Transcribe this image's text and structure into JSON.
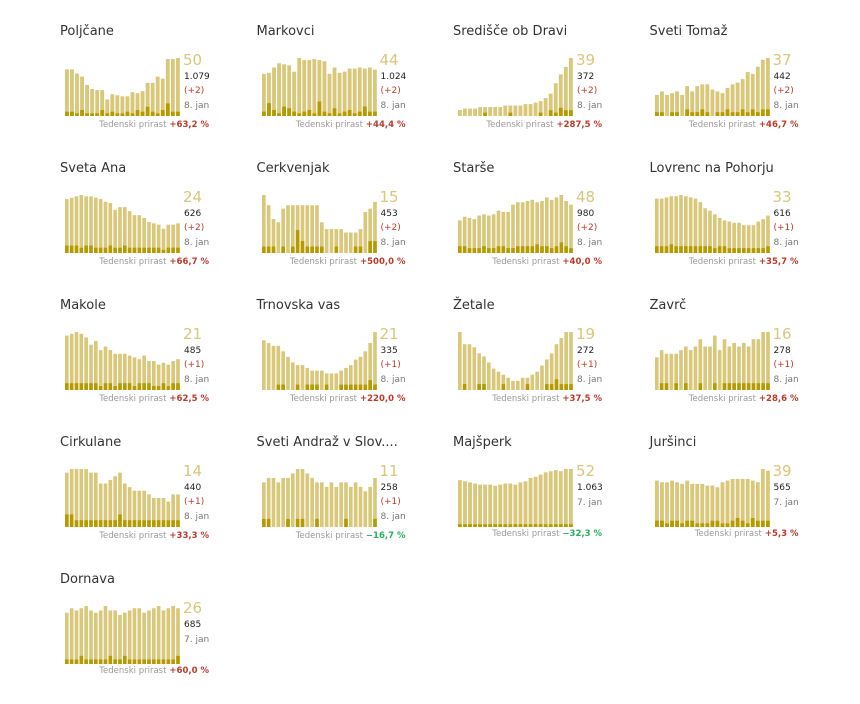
{
  "colors": {
    "total_bar": "#d9c77a",
    "new_bar": "#b59a00",
    "increase": "#c0392b",
    "decrease": "#27ae60",
    "big_number": "#d9c77a"
  },
  "growth_label": "Tedenski prirast",
  "chart_data": [
    {
      "type": "bar",
      "title": "Poljčane",
      "big": "50",
      "total": "1.079",
      "delta": "(+2)",
      "date": "8. jan",
      "growth": "+63,2 %",
      "growth_dir": "up",
      "values": [
        45,
        45,
        41,
        38,
        30,
        26,
        25,
        25,
        16,
        21,
        20,
        19,
        19,
        23,
        22,
        24,
        32,
        32,
        38,
        36,
        55,
        55,
        56
      ],
      "new_values": [
        2,
        2,
        1,
        3,
        1,
        1,
        1,
        3,
        1,
        2,
        1,
        1,
        2,
        1,
        3,
        2,
        5,
        2,
        1,
        3,
        7,
        2,
        2
      ]
    },
    {
      "type": "bar",
      "title": "Markovci",
      "big": "44",
      "total": "1.024",
      "delta": "(+2)",
      "date": "8. jan",
      "growth": "+44,4 %",
      "growth_dir": "up",
      "values": [
        40,
        41,
        46,
        50,
        49,
        48,
        42,
        55,
        53,
        53,
        54,
        53,
        52,
        40,
        46,
        41,
        42,
        45,
        45,
        46,
        45,
        46,
        44
      ],
      "new_values": [
        2,
        7,
        3,
        1,
        5,
        4,
        2,
        1,
        2,
        3,
        1,
        8,
        2,
        1,
        4,
        1,
        2,
        3,
        1,
        2,
        5,
        2,
        2
      ]
    },
    {
      "type": "bar",
      "title": "Središče ob Dravi",
      "big": "39",
      "total": "372",
      "delta": "(+2)",
      "date": "8. jan",
      "growth": "+287,5 %",
      "growth_dir": "up",
      "values": [
        4,
        5,
        5,
        5,
        6,
        6,
        6,
        6,
        6,
        7,
        7,
        7,
        7,
        8,
        8,
        9,
        10,
        12,
        15,
        22,
        28,
        33,
        39
      ],
      "new_values": [
        0,
        0,
        0,
        0,
        0,
        1,
        0,
        0,
        0,
        0,
        1,
        0,
        0,
        0,
        0,
        0,
        1,
        0,
        2,
        1,
        3,
        2,
        2
      ]
    },
    {
      "type": "bar",
      "title": "Sveti Tomaž",
      "big": "37",
      "total": "442",
      "delta": "(+2)",
      "date": "8. jan",
      "growth": "+46,7 %",
      "growth_dir": "up",
      "values": [
        12,
        14,
        12,
        13,
        14,
        12,
        17,
        14,
        17,
        18,
        18,
        15,
        14,
        13,
        16,
        18,
        19,
        21,
        25,
        24,
        28,
        32,
        33
      ],
      "new_values": [
        1,
        1,
        0,
        1,
        1,
        0,
        2,
        1,
        1,
        2,
        1,
        0,
        1,
        1,
        2,
        1,
        1,
        2,
        1,
        2,
        1,
        2,
        2
      ]
    },
    {
      "type": "bar",
      "title": "Sveta Ana",
      "big": "24",
      "total": "626",
      "delta": "(+2)",
      "date": "8. jan",
      "growth": "+66,7 %",
      "growth_dir": "up",
      "values": [
        40,
        41,
        42,
        43,
        42,
        42,
        41,
        40,
        38,
        37,
        32,
        34,
        34,
        31,
        28,
        28,
        26,
        23,
        22,
        21,
        18,
        21,
        21,
        22
      ],
      "new_values": [
        3,
        3,
        3,
        2,
        3,
        3,
        2,
        2,
        2,
        3,
        2,
        2,
        3,
        2,
        2,
        2,
        2,
        2,
        2,
        2,
        1,
        2,
        2,
        2
      ]
    },
    {
      "type": "bar",
      "title": "Cerkvenjak",
      "big": "15",
      "total": "453",
      "delta": "(+2)",
      "date": "8. jan",
      "growth": "+500,0 %",
      "growth_dir": "up",
      "values": [
        17,
        14,
        10,
        9,
        13,
        14,
        14,
        14,
        14,
        14,
        14,
        14,
        9,
        7,
        7,
        7,
        7,
        6,
        6,
        6,
        7,
        12,
        13,
        15
      ],
      "new_values": [
        1,
        1,
        1,
        0,
        1,
        0,
        1,
        4,
        2,
        1,
        1,
        1,
        1,
        0,
        0,
        1,
        0,
        0,
        0,
        1,
        1,
        0,
        2,
        2
      ]
    },
    {
      "type": "bar",
      "title": "Starše",
      "big": "48",
      "total": "980",
      "delta": "(+2)",
      "date": "8. jan",
      "growth": "+40,0 %",
      "growth_dir": "up",
      "values": [
        27,
        30,
        29,
        28,
        31,
        32,
        31,
        32,
        35,
        34,
        34,
        40,
        42,
        42,
        43,
        44,
        42,
        43,
        46,
        44,
        46,
        48,
        43,
        40
      ],
      "new_values": [
        3,
        3,
        2,
        2,
        2,
        3,
        2,
        2,
        3,
        3,
        2,
        2,
        3,
        3,
        3,
        3,
        4,
        3,
        3,
        2,
        3,
        5,
        3,
        2
      ]
    },
    {
      "type": "bar",
      "title": "Lovrenc na Pohorju",
      "big": "33",
      "total": "616",
      "delta": "(+1)",
      "date": "8. jan",
      "growth": "+35,7 %",
      "growth_dir": "up",
      "values": [
        45,
        45,
        46,
        47,
        47,
        48,
        47,
        46,
        45,
        42,
        37,
        35,
        32,
        29,
        27,
        26,
        25,
        25,
        23,
        23,
        23,
        26,
        28,
        31
      ],
      "new_values": [
        3,
        3,
        3,
        4,
        3,
        3,
        3,
        3,
        3,
        3,
        3,
        3,
        2,
        3,
        3,
        2,
        2,
        2,
        2,
        2,
        2,
        2,
        2,
        3
      ]
    },
    {
      "type": "bar",
      "title": "Makole",
      "big": "21",
      "total": "485",
      "delta": "(+1)",
      "date": "8. jan",
      "growth": "+62,5 %",
      "growth_dir": "up",
      "values": [
        30,
        31,
        32,
        31,
        29,
        25,
        27,
        22,
        24,
        22,
        20,
        20,
        20,
        19,
        18,
        17,
        19,
        16,
        16,
        14,
        15,
        14,
        16,
        17
      ],
      "new_values": [
        2,
        2,
        2,
        2,
        2,
        2,
        2,
        1,
        2,
        2,
        1,
        2,
        2,
        2,
        1,
        2,
        2,
        2,
        1,
        1,
        2,
        1,
        2,
        2
      ]
    },
    {
      "type": "bar",
      "title": "Trnovska vas",
      "big": "21",
      "total": "335",
      "delta": "(+1)",
      "date": "8. jan",
      "growth": "+220,0 %",
      "growth_dir": "up",
      "values": [
        18,
        17,
        16,
        16,
        14,
        12,
        10,
        9,
        9,
        8,
        7,
        7,
        7,
        6,
        6,
        6,
        7,
        8,
        9,
        11,
        12,
        14,
        17,
        21
      ],
      "new_values": [
        0,
        0,
        0,
        1,
        1,
        0,
        0,
        1,
        0,
        1,
        1,
        1,
        0,
        1,
        0,
        0,
        1,
        1,
        1,
        1,
        1,
        1,
        2,
        1
      ]
    },
    {
      "type": "bar",
      "title": "Žetale",
      "big": "19",
      "total": "272",
      "delta": "(+1)",
      "date": "8. jan",
      "growth": "+37,5 %",
      "growth_dir": "up",
      "values": [
        19,
        15,
        15,
        14,
        12,
        11,
        9,
        7,
        6,
        5,
        4,
        3,
        3,
        4,
        4,
        5,
        6,
        8,
        10,
        12,
        15,
        17,
        19,
        19
      ],
      "new_values": [
        0,
        1,
        0,
        0,
        1,
        1,
        0,
        0,
        0,
        1,
        0,
        0,
        0,
        0,
        1,
        0,
        0,
        0,
        1,
        1,
        2,
        1,
        1,
        1
      ]
    },
    {
      "type": "bar",
      "title": "Zavrč",
      "big": "16",
      "total": "278",
      "delta": "(+1)",
      "date": "8. jan",
      "growth": "+28,6 %",
      "growth_dir": "up",
      "values": [
        9,
        11,
        10,
        10,
        10,
        11,
        12,
        11,
        12,
        14,
        12,
        12,
        15,
        11,
        14,
        12,
        13,
        12,
        13,
        12,
        14,
        14,
        16,
        16
      ],
      "new_values": [
        0,
        1,
        1,
        0,
        1,
        0,
        1,
        0,
        0,
        1,
        0,
        0,
        1,
        0,
        1,
        1,
        1,
        1,
        1,
        1,
        1,
        1,
        1,
        1
      ]
    },
    {
      "type": "bar",
      "title": "Cirkulane",
      "big": "14",
      "total": "440",
      "delta": "(+1)",
      "date": "8. jan",
      "growth": "+33,3 %",
      "growth_dir": "up",
      "values": [
        15,
        16,
        16,
        16,
        16,
        15,
        15,
        12,
        12,
        13,
        14,
        15,
        12,
        11,
        10,
        10,
        10,
        9,
        8,
        8,
        8,
        7,
        9,
        9
      ],
      "new_values": [
        2,
        2,
        1,
        1,
        1,
        1,
        1,
        1,
        1,
        1,
        1,
        2,
        1,
        1,
        1,
        1,
        1,
        1,
        1,
        1,
        1,
        1,
        1,
        1
      ]
    },
    {
      "type": "bar",
      "title": "Sveti Andraž v Slov....",
      "big": "11",
      "total": "258",
      "delta": "(+1)",
      "date": "8. jan",
      "growth": "−16,7 %",
      "growth_dir": "down",
      "values": [
        10,
        11,
        11,
        10,
        11,
        11,
        12,
        13,
        13,
        12,
        11,
        10,
        10,
        9,
        10,
        9,
        10,
        10,
        9,
        10,
        9,
        8,
        9,
        11
      ],
      "new_values": [
        1,
        1,
        0,
        0,
        0,
        1,
        0,
        1,
        1,
        0,
        0,
        1,
        0,
        0,
        0,
        0,
        0,
        1,
        0,
        0,
        0,
        0,
        0,
        1
      ]
    },
    {
      "type": "bar",
      "title": "Majšperk",
      "big": "52",
      "total": "1.063",
      "delta": "",
      "date": "7. jan",
      "growth": "−32,3 %",
      "growth_dir": "down",
      "values": [
        42,
        41,
        40,
        39,
        38,
        38,
        38,
        37,
        38,
        39,
        39,
        38,
        40,
        41,
        44,
        45,
        47,
        49,
        50,
        51,
        50,
        52,
        52
      ],
      "new_values": [
        1,
        1,
        1,
        1,
        1,
        1,
        1,
        1,
        1,
        1,
        1,
        1,
        1,
        1,
        1,
        1,
        1,
        1,
        1,
        1,
        1,
        1,
        1
      ]
    },
    {
      "type": "bar",
      "title": "Juršinci",
      "big": "39",
      "total": "565",
      "delta": "",
      "date": "7. jan",
      "growth": "+5,3 %",
      "growth_dir": "up",
      "values": [
        28,
        27,
        27,
        28,
        27,
        26,
        28,
        26,
        26,
        26,
        25,
        25,
        24,
        27,
        28,
        29,
        29,
        29,
        29,
        28,
        27,
        35,
        34
      ],
      "new_values": [
        2,
        2,
        1,
        2,
        2,
        1,
        2,
        2,
        1,
        1,
        1,
        2,
        2,
        1,
        1,
        2,
        3,
        2,
        1,
        3,
        2,
        2,
        2
      ]
    },
    {
      "type": "bar",
      "title": "Dornava",
      "big": "26",
      "total": "685",
      "delta": "",
      "date": "7. jan",
      "growth": "+60,0 %",
      "growth_dir": "up",
      "values": [
        23,
        25,
        24,
        25,
        26,
        24,
        23,
        24,
        26,
        24,
        24,
        22,
        23,
        24,
        25,
        25,
        23,
        24,
        25,
        26,
        24,
        25,
        26,
        25
      ],
      "new_values": [
        1,
        1,
        1,
        2,
        1,
        1,
        1,
        1,
        1,
        2,
        1,
        1,
        2,
        1,
        1,
        1,
        1,
        1,
        1,
        1,
        1,
        1,
        1,
        2
      ]
    }
  ]
}
